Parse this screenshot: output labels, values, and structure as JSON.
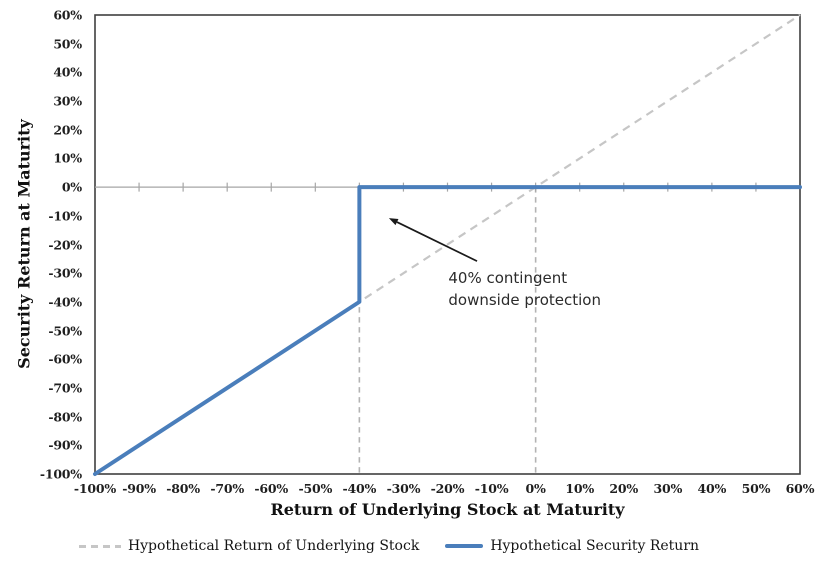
{
  "chart_data": {
    "type": "line",
    "title": "",
    "xlabel": "Return of Underlying Stock at Maturity",
    "ylabel": "Security Return at Maturity",
    "xlim": [
      -100,
      60
    ],
    "ylim": [
      -100,
      60
    ],
    "grid": "off",
    "legend_position": "bottom",
    "x_tick_values": [
      -100,
      -90,
      -80,
      -70,
      -60,
      -50,
      -40,
      -30,
      -20,
      -10,
      0,
      10,
      20,
      30,
      40,
      50,
      60
    ],
    "x_tick_labels": [
      "-100%",
      "-90%",
      "-80%",
      "-70%",
      "-60%",
      "-50%",
      "-40%",
      "-30%",
      "-20%",
      "-10%",
      "0%",
      "10%",
      "20%",
      "30%",
      "40%",
      "50%",
      "60%"
    ],
    "y_tick_values": [
      60,
      50,
      40,
      30,
      20,
      10,
      0,
      -10,
      -20,
      -30,
      -40,
      -50,
      -60,
      -70,
      -80,
      -90,
      -100
    ],
    "y_tick_labels": [
      "60%",
      "50%",
      "40%",
      "30%",
      "20%",
      "10%",
      "0%",
      "-10%",
      "-20%",
      "-30%",
      "-40%",
      "-50%",
      "-60%",
      "-70%",
      "-80%",
      "-90%",
      "-100%"
    ],
    "series": [
      {
        "name": "Hypothetical Return of Underlying Stock",
        "style": "dashed",
        "color": "#c6c6c6",
        "points": [
          [
            -100,
            -100
          ],
          [
            60,
            60
          ]
        ]
      },
      {
        "name": "Hypothetical Security Return",
        "style": "solid",
        "color": "#4a7ebb",
        "points": [
          [
            -100,
            -100
          ],
          [
            -40,
            -40
          ],
          [
            -40,
            0
          ],
          [
            60,
            0
          ]
        ]
      }
    ],
    "reference_lines": [
      {
        "axis": "x",
        "value": -40,
        "from_y": 0,
        "to_y": -100,
        "style": "dashed",
        "color": "#b3b3b3"
      },
      {
        "axis": "x",
        "value": 0,
        "from_y": 0,
        "to_y": -100,
        "style": "dashed",
        "color": "#b3b3b3"
      }
    ],
    "annotation": {
      "lines": [
        "40% contingent",
        "downside protection"
      ],
      "text_anchor": {
        "x": -19.8,
        "y": -28.2
      },
      "arrow_tail": {
        "x": -13.3,
        "y": -25.8
      },
      "arrow_tip": {
        "x": -33.3,
        "y": -10.8
      }
    },
    "colors": {
      "plot_border": "#3f3f3f",
      "axis_line": "#a6a6a6",
      "arrow": "#1a1a1a",
      "background": "#ffffff"
    }
  }
}
